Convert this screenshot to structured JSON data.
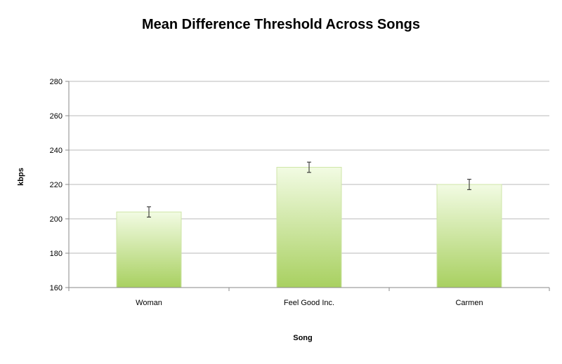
{
  "chart_data": {
    "type": "bar",
    "title": "Mean Difference Threshold Across Songs",
    "xlabel": "Song",
    "ylabel": "kbps",
    "categories": [
      "Woman",
      "Feel Good Inc.",
      "Carmen"
    ],
    "values": [
      204,
      230,
      220
    ],
    "error": [
      3,
      3,
      3
    ],
    "ylim": [
      160,
      280
    ],
    "yticks": [
      160,
      180,
      200,
      220,
      240,
      260,
      280
    ],
    "grid": true,
    "legend": "none",
    "colors": {
      "bar_top": "#f2fbe3",
      "bar_bottom": "#a8d060"
    }
  }
}
